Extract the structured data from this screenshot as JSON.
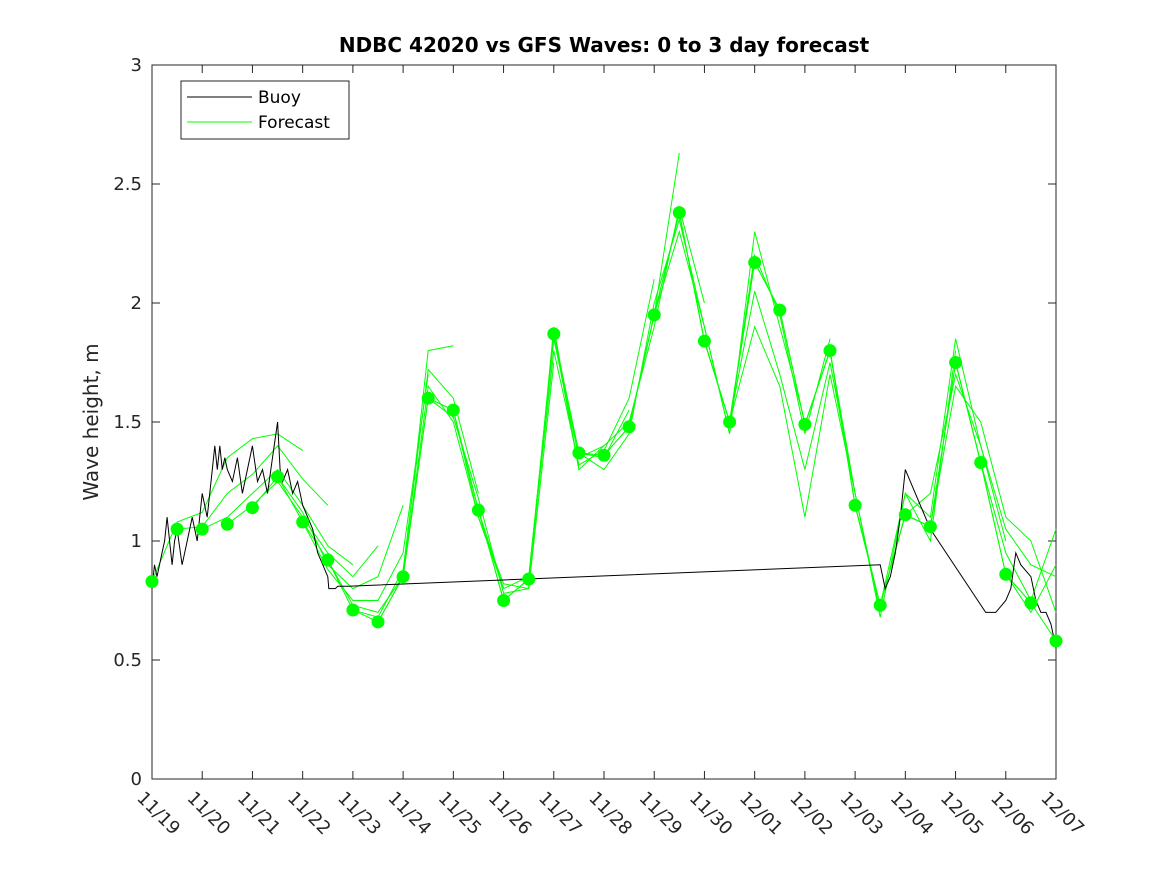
{
  "chart_data": {
    "type": "line",
    "title": "NDBC 42020 vs GFS Waves: 0 to 3 day forecast",
    "xlabel": "",
    "ylabel": "Wave height, m",
    "xlim": [
      0,
      18
    ],
    "ylim": [
      0,
      3
    ],
    "x_tick_labels": [
      "11/19",
      "11/20",
      "11/21",
      "11/22",
      "11/23",
      "11/24",
      "11/25",
      "11/26",
      "11/27",
      "11/28",
      "11/29",
      "11/30",
      "12/01",
      "12/02",
      "12/03",
      "12/04",
      "12/05",
      "12/06",
      "12/07"
    ],
    "y_ticks": [
      0,
      0.5,
      1,
      1.5,
      2,
      2.5,
      3
    ],
    "y_tick_labels": [
      "0",
      "0.5",
      "1",
      "1.5",
      "2",
      "2.5",
      "3"
    ],
    "legend": {
      "placement": "top-left",
      "entries": [
        "Buoy",
        "Forecast"
      ]
    },
    "colors": {
      "buoy": "#000000",
      "forecast": "#00ff00",
      "marker": "#00ff00",
      "axis": "#262626"
    },
    "series": [
      {
        "name": "Buoy",
        "x": [
          0,
          0.05,
          0.1,
          0.15,
          0.2,
          0.25,
          0.3,
          0.35,
          0.4,
          0.45,
          0.5,
          0.6,
          0.7,
          0.8,
          0.9,
          1.0,
          1.1,
          1.2,
          1.25,
          1.3,
          1.35,
          1.4,
          1.45,
          1.5,
          1.6,
          1.7,
          1.8,
          1.9,
          2.0,
          2.1,
          2.2,
          2.3,
          2.4,
          2.5,
          2.55,
          2.6,
          2.7,
          2.8,
          2.9,
          3.0,
          3.1,
          3.2,
          3.3,
          3.4,
          3.5,
          3.52,
          3.6,
          3.65,
          3.7,
          3.8,
          3.9,
          14.5,
          14.6,
          14.7,
          14.8,
          14.9,
          15.0,
          15.5,
          16.6,
          16.8,
          17.0,
          17.1,
          17.2,
          17.3,
          17.5,
          17.6,
          17.7,
          17.8,
          17.9,
          18.0
        ],
        "values": [
          0.8,
          0.9,
          0.85,
          0.9,
          0.95,
          1.0,
          1.1,
          1.0,
          0.9,
          1.0,
          1.05,
          0.9,
          1.0,
          1.1,
          1.0,
          1.2,
          1.1,
          1.3,
          1.4,
          1.3,
          1.4,
          1.3,
          1.35,
          1.3,
          1.25,
          1.35,
          1.2,
          1.3,
          1.4,
          1.25,
          1.3,
          1.2,
          1.35,
          1.5,
          1.3,
          1.25,
          1.3,
          1.2,
          1.25,
          1.15,
          1.1,
          1.05,
          0.95,
          0.9,
          0.85,
          0.8,
          0.8,
          0.8,
          0.81,
          0.81,
          0.81,
          0.9,
          0.8,
          0.85,
          0.95,
          1.1,
          1.3,
          1.05,
          0.7,
          0.7,
          0.75,
          0.8,
          0.95,
          0.9,
          0.85,
          0.75,
          0.7,
          0.7,
          0.65,
          0.55
        ]
      },
      {
        "name": "Forecast",
        "markers_x": [
          0,
          0.5,
          1,
          1.5,
          2,
          2.5,
          3,
          3.5,
          4,
          4.5,
          5,
          5.5,
          6,
          6.5,
          7,
          7.5,
          8,
          8.5,
          9,
          9.5,
          10,
          10.5,
          11,
          11.5,
          12,
          12.5,
          13,
          13.5,
          14,
          14.5,
          15,
          15.5,
          16,
          16.5,
          17,
          17.5,
          18
        ],
        "markers_values": [
          0.83,
          1.05,
          1.05,
          1.07,
          1.14,
          1.27,
          1.08,
          0.92,
          0.71,
          0.66,
          0.85,
          1.6,
          1.55,
          1.13,
          0.75,
          0.84,
          1.87,
          1.37,
          1.36,
          1.48,
          1.95,
          2.38,
          1.84,
          1.5,
          2.17,
          1.97,
          1.49,
          1.8,
          1.15,
          0.73,
          1.11,
          1.06,
          1.75,
          1.33,
          0.86,
          0.74,
          0.58
        ],
        "runs": [
          {
            "x": [
              0,
              0.5,
              1,
              1.5,
              2,
              2.5,
              3
            ],
            "values": [
              0.83,
              1.08,
              1.12,
              1.35,
              1.43,
              1.45,
              1.38
            ]
          },
          {
            "x": [
              0.5,
              1,
              1.5,
              2,
              2.5,
              3,
              3.5
            ],
            "values": [
              1.05,
              1.06,
              1.2,
              1.28,
              1.4,
              1.26,
              1.15
            ]
          },
          {
            "x": [
              1,
              1.5,
              2,
              2.5,
              3,
              3.5,
              4
            ],
            "values": [
              1.05,
              1.1,
              1.2,
              1.3,
              1.15,
              0.98,
              0.9
            ]
          },
          {
            "x": [
              1.5,
              2,
              2.5,
              3,
              3.5,
              4,
              4.5
            ],
            "values": [
              1.07,
              1.15,
              1.25,
              1.1,
              0.95,
              0.85,
              0.98
            ]
          },
          {
            "x": [
              2,
              2.5,
              3,
              3.5,
              4,
              4.5,
              5
            ],
            "values": [
              1.14,
              1.27,
              1.12,
              0.9,
              0.8,
              0.85,
              1.15
            ]
          },
          {
            "x": [
              2.5,
              3,
              3.5,
              4,
              4.5,
              5,
              5.5
            ],
            "values": [
              1.27,
              1.08,
              0.88,
              0.75,
              0.75,
              0.95,
              1.7
            ]
          },
          {
            "x": [
              3,
              3.5,
              4,
              4.5,
              5,
              5.5,
              6
            ],
            "values": [
              1.08,
              0.92,
              0.73,
              0.7,
              0.85,
              1.8,
              1.82
            ]
          },
          {
            "x": [
              3.5,
              4,
              4.5,
              5,
              5.5,
              6,
              6.5
            ],
            "values": [
              0.92,
              0.71,
              0.68,
              0.88,
              1.72,
              1.6,
              1.2
            ]
          },
          {
            "x": [
              4,
              4.5,
              5,
              5.5,
              6,
              6.5,
              7
            ],
            "values": [
              0.71,
              0.66,
              0.85,
              1.65,
              1.5,
              1.1,
              0.8
            ]
          },
          {
            "x": [
              4.5,
              5,
              5.5,
              6,
              6.5,
              7,
              7.5
            ],
            "values": [
              0.66,
              0.85,
              1.6,
              1.55,
              1.13,
              0.75,
              0.84
            ]
          },
          {
            "x": [
              5,
              5.5,
              6,
              6.5,
              7,
              7.5,
              8
            ],
            "values": [
              0.85,
              1.6,
              1.52,
              1.18,
              0.78,
              0.8,
              1.75
            ]
          },
          {
            "x": [
              5.5,
              6,
              6.5,
              7,
              7.5,
              8,
              8.5
            ],
            "values": [
              1.6,
              1.55,
              1.1,
              0.82,
              0.8,
              1.9,
              1.3
            ]
          },
          {
            "x": [
              6,
              6.5,
              7,
              7.5,
              8,
              8.5,
              9
            ],
            "values": [
              1.55,
              1.13,
              0.8,
              0.85,
              1.85,
              1.35,
              1.4
            ]
          },
          {
            "x": [
              6.5,
              7,
              7.5,
              8,
              8.5,
              9,
              9.5
            ],
            "values": [
              1.13,
              0.75,
              0.84,
              1.87,
              1.37,
              1.35,
              1.55
            ]
          },
          {
            "x": [
              7,
              7.5,
              8,
              8.5,
              9,
              9.5,
              10
            ],
            "values": [
              0.75,
              0.84,
              1.8,
              1.32,
              1.38,
              1.6,
              2.1
            ]
          },
          {
            "x": [
              7.5,
              8,
              8.5,
              9,
              9.5,
              10,
              10.5
            ],
            "values": [
              0.84,
              1.87,
              1.37,
              1.36,
              1.48,
              1.95,
              2.63
            ]
          },
          {
            "x": [
              8,
              8.5,
              9,
              9.5,
              10,
              10.5,
              11
            ],
            "values": [
              1.87,
              1.3,
              1.4,
              1.5,
              1.9,
              2.4,
              2.0
            ]
          },
          {
            "x": [
              8.5,
              9,
              9.5,
              10,
              10.5,
              11,
              11.5
            ],
            "values": [
              1.37,
              1.3,
              1.45,
              2.0,
              2.35,
              1.9,
              1.45
            ]
          },
          {
            "x": [
              9,
              9.5,
              10,
              10.5,
              11,
              11.5,
              12
            ],
            "values": [
              1.36,
              1.48,
              1.95,
              2.38,
              1.84,
              1.5,
              2.2
            ]
          },
          {
            "x": [
              9.5,
              10,
              10.5,
              11,
              11.5,
              12,
              12.5
            ],
            "values": [
              1.48,
              1.95,
              2.38,
              1.84,
              1.5,
              2.17,
              1.97
            ]
          },
          {
            "x": [
              10,
              10.5,
              11,
              11.5,
              12,
              12.5,
              13
            ],
            "values": [
              1.95,
              2.3,
              1.9,
              1.45,
              2.3,
              1.9,
              1.5
            ]
          },
          {
            "x": [
              10.5,
              11,
              11.5,
              12,
              12.5,
              13,
              13.5
            ],
            "values": [
              2.38,
              1.84,
              1.5,
              2.2,
              1.95,
              1.45,
              1.85
            ]
          },
          {
            "x": [
              11,
              11.5,
              12,
              12.5,
              13,
              13.5,
              14
            ],
            "values": [
              1.84,
              1.5,
              2.05,
              1.7,
              1.3,
              1.75,
              1.2
            ]
          },
          {
            "x": [
              11.5,
              12,
              12.5,
              13,
              13.5,
              14,
              14.5
            ],
            "values": [
              1.5,
              1.9,
              1.65,
              1.1,
              1.7,
              1.2,
              0.7
            ]
          },
          {
            "x": [
              12,
              12.5,
              13,
              13.5,
              14,
              14.5,
              15
            ],
            "values": [
              2.17,
              1.97,
              1.49,
              1.8,
              1.15,
              0.73,
              1.11
            ]
          },
          {
            "x": [
              12.5,
              13,
              13.5,
              14,
              14.5,
              15,
              15.5
            ],
            "values": [
              1.97,
              1.49,
              1.8,
              1.15,
              0.73,
              1.11,
              1.06
            ]
          },
          {
            "x": [
              13,
              13.5,
              14,
              14.5,
              15,
              15.5,
              16
            ],
            "values": [
              1.49,
              1.8,
              1.2,
              0.68,
              1.2,
              1.0,
              1.8
            ]
          },
          {
            "x": [
              13.5,
              14,
              14.5,
              15,
              15.5,
              16,
              16.5
            ],
            "values": [
              1.8,
              1.15,
              0.73,
              1.11,
              1.06,
              1.75,
              1.33
            ]
          },
          {
            "x": [
              14,
              14.5,
              15,
              15.5,
              16,
              16.5,
              17
            ],
            "values": [
              1.15,
              0.73,
              1.2,
              1.1,
              1.85,
              1.4,
              1.0
            ]
          },
          {
            "x": [
              14.5,
              15,
              15.5,
              16,
              16.5,
              17,
              17.5
            ],
            "values": [
              0.73,
              1.11,
              1.06,
              1.75,
              1.33,
              0.86,
              0.74
            ]
          },
          {
            "x": [
              15,
              15.5,
              16,
              16.5,
              17,
              17.5,
              18
            ],
            "values": [
              1.11,
              1.2,
              1.7,
              1.4,
              1.05,
              0.9,
              0.85
            ]
          },
          {
            "x": [
              15.5,
              16,
              16.5,
              17,
              17.5,
              18
            ],
            "values": [
              1.06,
              1.65,
              1.5,
              1.1,
              1.0,
              0.7
            ]
          },
          {
            "x": [
              16,
              16.5,
              17,
              17.5,
              18
            ],
            "values": [
              1.75,
              1.33,
              0.86,
              0.74,
              0.58
            ]
          },
          {
            "x": [
              16.5,
              17,
              17.5,
              18
            ],
            "values": [
              1.33,
              0.95,
              0.75,
              1.05
            ]
          },
          {
            "x": [
              17,
              17.5,
              18
            ],
            "values": [
              0.86,
              0.7,
              0.9
            ]
          }
        ]
      }
    ]
  }
}
